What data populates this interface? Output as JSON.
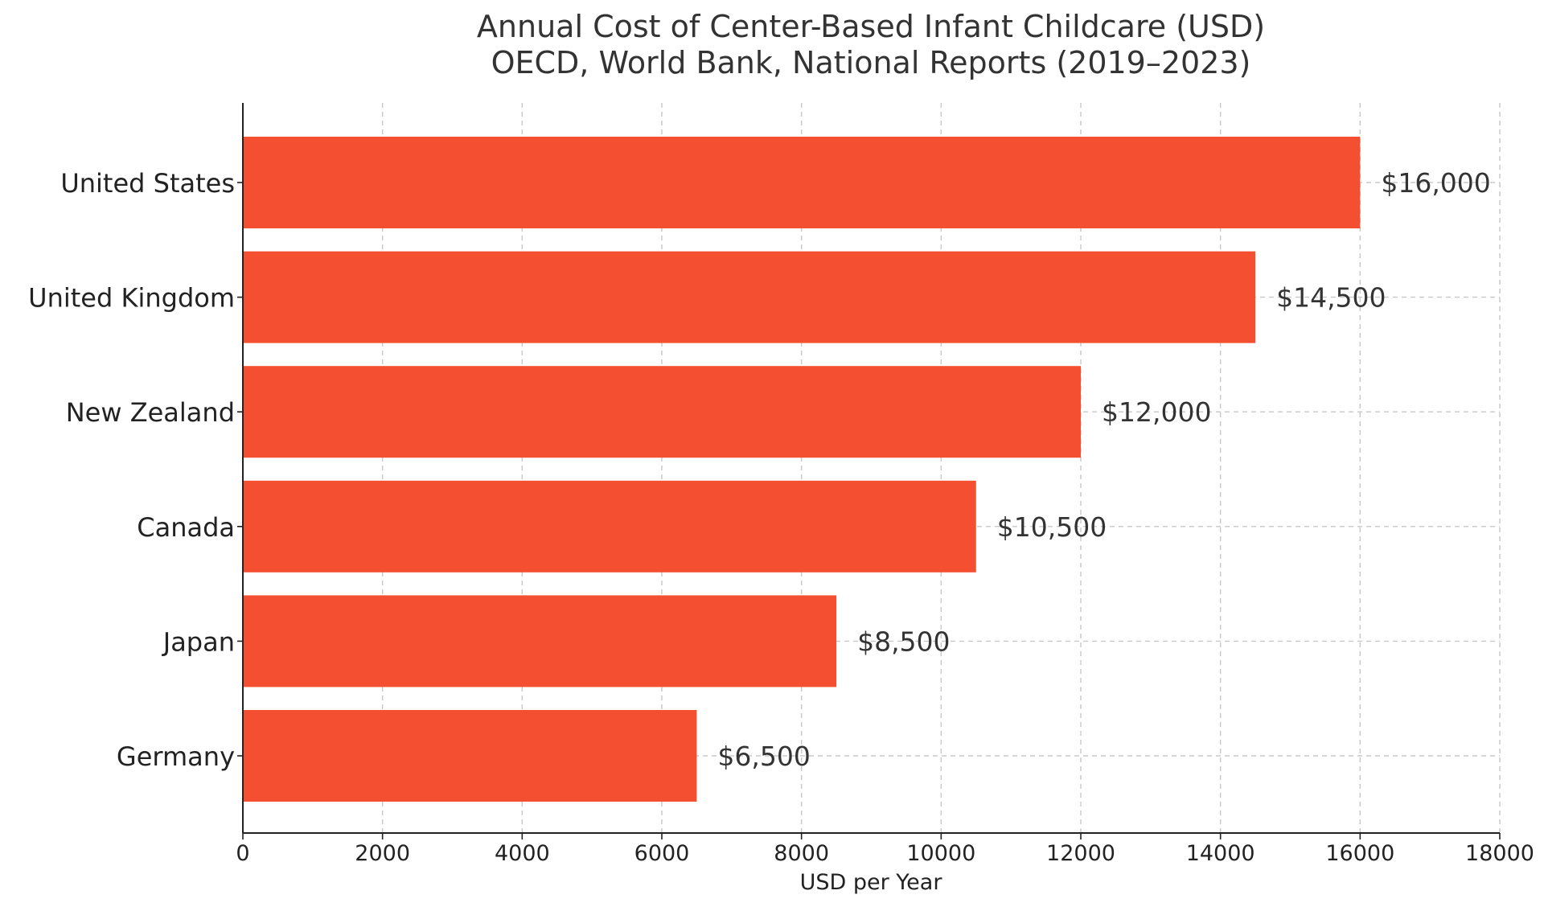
{
  "chart_data": {
    "type": "bar",
    "orientation": "horizontal",
    "title": "Annual Cost of Center-Based Infant Childcare (USD)",
    "subtitle": "OECD, World Bank, National Reports (2019–2023)",
    "xlabel": "USD per Year",
    "ylabel": "",
    "categories": [
      "United States",
      "United Kingdom",
      "New Zealand",
      "Canada",
      "Japan",
      "Germany"
    ],
    "values": [
      16000,
      14500,
      12000,
      10500,
      8500,
      6500
    ],
    "data_labels": [
      "$16,000",
      "$14,500",
      "$12,000",
      "$10,500",
      "$8,500",
      "$6,500"
    ],
    "xlim": [
      0,
      18000
    ],
    "xticks": [
      0,
      2000,
      4000,
      6000,
      8000,
      10000,
      12000,
      14000,
      16000,
      18000
    ],
    "xtick_labels": [
      "0",
      "2000",
      "4000",
      "6000",
      "8000",
      "10000",
      "12000",
      "14000",
      "16000",
      "18000"
    ],
    "grid": true,
    "bar_color": "#f44f30",
    "legend": "none"
  }
}
